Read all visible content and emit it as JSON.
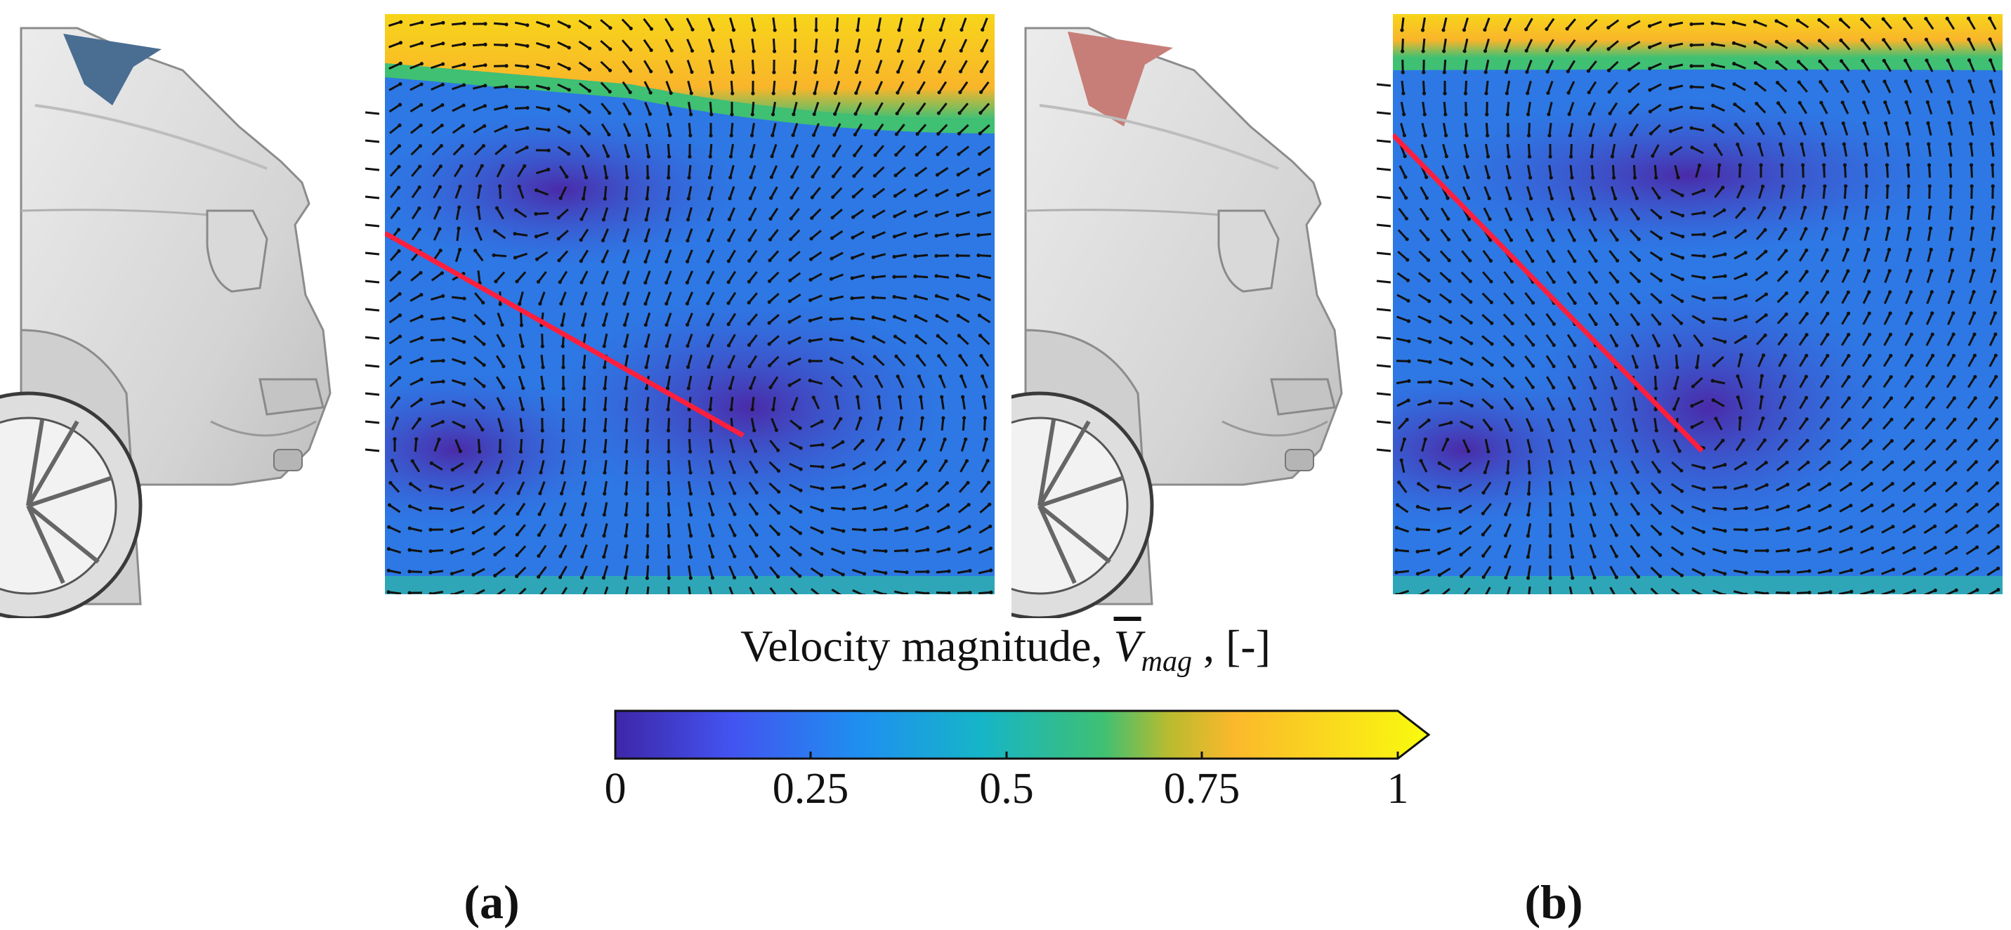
{
  "figure": {
    "colorbar": {
      "title_prefix": "Velocity magnitude, ",
      "symbol": "V",
      "subscript": "mag",
      "title_suffix": " , [-]",
      "colormap": "parula",
      "range": [
        0,
        1
      ],
      "extend": "max",
      "colors": [
        "#3e26a8",
        "#4353f0",
        "#1f8ff0",
        "#16b5c8",
        "#3fc073",
        "#b8bb2f",
        "#fbb82c",
        "#f9fb0e"
      ],
      "ticks": [
        "0",
        "0.25",
        "0.5",
        "0.75",
        "1"
      ]
    },
    "panels": [
      {
        "label": "(a)",
        "spoiler_color": "#4a6d92"
      },
      {
        "label": "(b)",
        "spoiler_color": "#c77e78"
      }
    ],
    "reference_line_color": "#ff1f3d"
  }
}
